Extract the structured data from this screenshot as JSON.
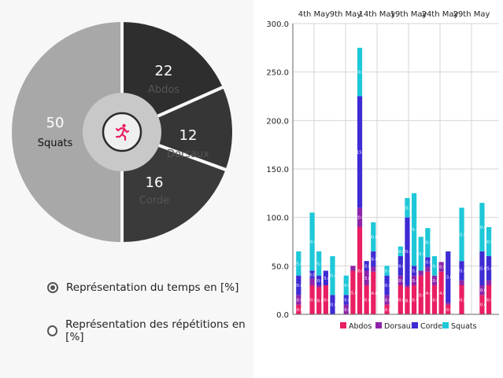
{
  "pie": {
    "slices": [
      {
        "value": "22",
        "label": "Abdos",
        "color": "#2e2e2e",
        "value_color": "#ffffff",
        "label_color": "#555555"
      },
      {
        "value": "12",
        "label": "Dorsaux",
        "color": "#363636",
        "value_color": "#ffffff",
        "label_color": "#555555"
      },
      {
        "value": "16",
        "label": "Corde",
        "color": "#3a3a3a",
        "value_color": "#ffffff",
        "label_color": "#555555"
      },
      {
        "value": "50",
        "label": "Squats",
        "color": "#a8a8a8",
        "value_color": "#ffffff",
        "label_color": "#111111"
      }
    ],
    "center_icon": "running-person-icon",
    "center_icon_color": "#e91e63"
  },
  "options": {
    "time_label": "Représentation du temps en [%]",
    "reps_label": "Représentation des répétitions en [%]",
    "selected": "time"
  },
  "chart_data": {
    "type": "bar",
    "stacked": true,
    "x_tick_labels": [
      "4th May",
      "9th May",
      "14th May",
      "19th May",
      "24th May",
      "29th May"
    ],
    "y_ticks": [
      "0.0",
      "50.0",
      "100.0",
      "150.0",
      "200.0",
      "250.0",
      "300.0"
    ],
    "ylim": [
      0,
      300
    ],
    "grid": true,
    "legend_position": "bottom-right",
    "series": [
      {
        "name": "Abdos",
        "color": "#e91e63",
        "values": [
          10,
          0,
          30,
          28,
          30,
          0,
          0,
          0,
          45,
          90,
          30,
          44,
          0,
          10,
          0,
          30,
          28,
          30,
          40,
          44,
          30,
          44,
          10,
          0,
          30,
          0,
          0,
          20,
          30,
          0
        ]
      },
      {
        "name": "Dorsaux",
        "color": "#8e24aa",
        "values": [
          10,
          0,
          7,
          2,
          0,
          0,
          0,
          10,
          5,
          20,
          15,
          5,
          0,
          10,
          0,
          10,
          2,
          10,
          5,
          5,
          10,
          10,
          2,
          0,
          5,
          0,
          0,
          10,
          5,
          0
        ]
      },
      {
        "name": "Corde",
        "color": "#3d2bd4",
        "values": [
          20,
          0,
          8,
          10,
          15,
          20,
          0,
          10,
          0,
          115,
          10,
          16,
          0,
          20,
          0,
          20,
          70,
          10,
          0,
          10,
          0,
          0,
          53,
          0,
          20,
          0,
          0,
          35,
          25,
          0
        ]
      },
      {
        "name": "Squats",
        "color": "#1ec8d8",
        "values": [
          25,
          0,
          60,
          25,
          0,
          40,
          0,
          20,
          0,
          50,
          0,
          30,
          0,
          10,
          0,
          10,
          20,
          75,
          35,
          30,
          20,
          0,
          0,
          0,
          55,
          0,
          0,
          50,
          30,
          0
        ]
      }
    ]
  }
}
